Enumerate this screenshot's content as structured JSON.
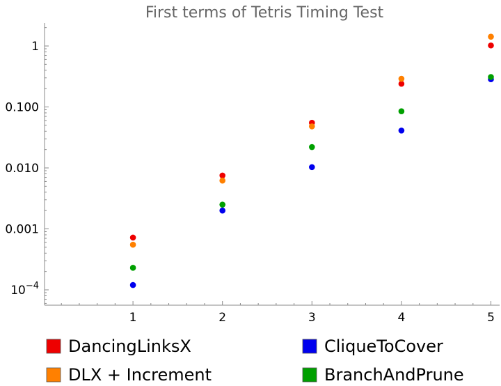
{
  "chart_data": {
    "type": "scatter",
    "title": "First terms of Tetris Timing Test",
    "xlabel": "",
    "ylabel": "",
    "yscale": "log",
    "x_ticks": [
      1,
      2,
      3,
      4,
      5
    ],
    "y_ticks": [
      {
        "value": 0.0001,
        "label": "10",
        "sup": "−4"
      },
      {
        "value": 0.001,
        "label": "0.001",
        "sup": ""
      },
      {
        "value": 0.01,
        "label": "0.010",
        "sup": ""
      },
      {
        "value": 0.1,
        "label": "0.100",
        "sup": ""
      },
      {
        "value": 1,
        "label": "1",
        "sup": ""
      }
    ],
    "xlim": [
      0,
      5.1
    ],
    "ylim": [
      5e-05,
      2.5
    ],
    "legend_position": "bottom",
    "series": [
      {
        "name": "DancingLinksX",
        "color": "#ee0000",
        "points": [
          [
            1,
            0.00072
          ],
          [
            2,
            0.0075
          ],
          [
            3,
            0.055
          ],
          [
            4,
            0.24
          ],
          [
            5,
            1.02
          ]
        ]
      },
      {
        "name": "DLX + Increment",
        "color": "#ff8000",
        "points": [
          [
            1,
            0.00055
          ],
          [
            2,
            0.0062
          ],
          [
            3,
            0.048
          ],
          [
            4,
            0.29
          ],
          [
            5,
            1.42
          ]
        ]
      },
      {
        "name": "CliqueToCover",
        "color": "#0000ee",
        "points": [
          [
            1,
            0.00012
          ],
          [
            2,
            0.002
          ],
          [
            3,
            0.0103
          ],
          [
            4,
            0.041
          ],
          [
            5,
            0.285
          ]
        ]
      },
      {
        "name": "BranchAndPrune",
        "color": "#00a000",
        "points": [
          [
            1,
            0.00023
          ],
          [
            2,
            0.0025
          ],
          [
            3,
            0.022
          ],
          [
            4,
            0.085
          ],
          [
            5,
            0.31
          ]
        ]
      }
    ]
  }
}
